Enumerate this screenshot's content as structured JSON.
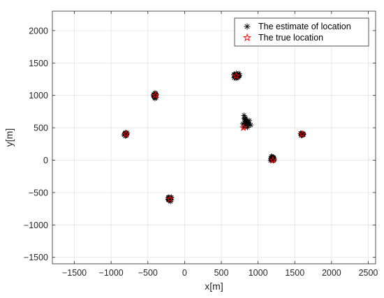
{
  "chart_data": {
    "type": "scatter",
    "title": "",
    "xlabel": "x[m]",
    "ylabel": "y[m]",
    "xlim": [
      -1800,
      2600
    ],
    "ylim": [
      -1600,
      2300
    ],
    "x_ticks": [
      -1500,
      -1000,
      -500,
      0,
      500,
      1000,
      1500,
      2000,
      2500
    ],
    "y_ticks": [
      -1500,
      -1000,
      -500,
      0,
      500,
      1000,
      1500,
      2000
    ],
    "grid": true,
    "legend": {
      "placement": "top-right",
      "entries": [
        {
          "label": "The estimate of location",
          "marker": "asterisk",
          "color": "#000000"
        },
        {
          "label": "The true location",
          "marker": "pentagram",
          "color": "#ff0000"
        }
      ]
    },
    "series": [
      {
        "name": "The estimate of location",
        "marker": "asterisk",
        "color": "#000000",
        "clusters": [
          {
            "x": -800,
            "y": 400,
            "spread_x": 20,
            "spread_y": 30
          },
          {
            "x": -400,
            "y": 1000,
            "spread_x": 20,
            "spread_y": 30
          },
          {
            "x": -200,
            "y": -600,
            "spread_x": 20,
            "spread_y": 30
          },
          {
            "x": 700,
            "y": 1300,
            "spread_x": 45,
            "spread_y": 40
          },
          {
            "x": 830,
            "y": 570,
            "spread_x": 55,
            "spread_y": 80
          },
          {
            "x": 1200,
            "y": 20,
            "spread_x": 25,
            "spread_y": 30
          },
          {
            "x": 1600,
            "y": 400,
            "spread_x": 15,
            "spread_y": 20
          }
        ]
      },
      {
        "name": "The true location",
        "marker": "pentagram",
        "color": "#ff0000",
        "points": [
          {
            "x": -800,
            "y": 400
          },
          {
            "x": -400,
            "y": 1000
          },
          {
            "x": -200,
            "y": -600
          },
          {
            "x": 700,
            "y": 1300
          },
          {
            "x": 800,
            "y": 500
          },
          {
            "x": 1200,
            "y": 0
          },
          {
            "x": 1600,
            "y": 400
          }
        ]
      }
    ]
  }
}
